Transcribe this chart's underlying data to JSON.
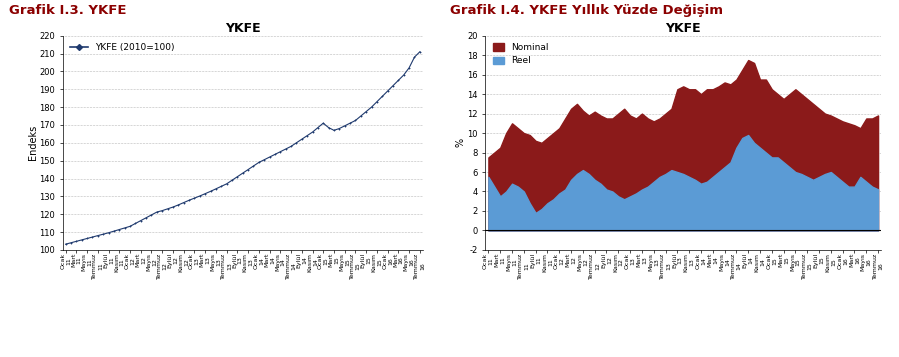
{
  "title1": "YKFE",
  "title2": "YKFE",
  "graph1_title": "Grafik I.3. YKFE",
  "graph2_title": "Grafik I.4. YKFE Yıllık Yüzde Değişim",
  "ylabel1": "Endeks",
  "ylabel2": "%",
  "legend1": "YKFE (2010=100)",
  "legend2_nominal": "Nominal",
  "legend2_reel": "Reel",
  "ylim1": [
    100,
    220
  ],
  "yticks1": [
    100,
    110,
    120,
    130,
    140,
    150,
    160,
    170,
    180,
    190,
    200,
    210,
    220
  ],
  "ylim2": [
    -2,
    20
  ],
  "yticks2": [
    -2,
    0,
    2,
    4,
    6,
    8,
    10,
    12,
    14,
    16,
    18,
    20
  ],
  "line_color": "#1f3a6e",
  "nominal_color": "#8b1a1a",
  "reel_color": "#5b9bd5",
  "title_color": "#8b0000",
  "months": [
    "Ocak",
    "Mart",
    "Mayıs",
    "Temmuz",
    "Eylül",
    "Kasım"
  ],
  "years": [
    "11",
    "12",
    "13",
    "14",
    "15",
    "16"
  ],
  "ykfe_values": [
    103.2,
    104.0,
    104.8,
    105.6,
    106.4,
    107.2,
    108.0,
    108.8,
    109.6,
    110.5,
    111.4,
    112.3,
    113.2,
    114.8,
    116.4,
    118.0,
    119.6,
    121.2,
    122.0,
    123.0,
    124.0,
    125.2,
    126.5,
    127.8,
    129.0,
    130.2,
    131.5,
    132.8,
    134.2,
    135.6,
    137.0,
    139.0,
    141.0,
    143.0,
    145.0,
    147.0,
    149.0,
    150.5,
    152.0,
    153.5,
    155.0,
    156.5,
    158.0,
    160.0,
    162.0,
    164.0,
    166.0,
    168.5,
    171.0,
    168.5,
    167.0,
    168.0,
    169.5,
    171.0,
    172.5,
    175.0,
    177.5,
    180.0,
    183.0,
    186.0,
    189.0,
    192.0,
    195.0,
    198.0,
    202.0,
    208.0,
    211.0
  ],
  "nominal_values": [
    7.5,
    8.0,
    8.5,
    10.0,
    11.0,
    10.5,
    10.0,
    9.8,
    9.2,
    9.0,
    9.5,
    10.0,
    10.5,
    11.5,
    12.5,
    13.0,
    12.3,
    11.8,
    12.2,
    11.8,
    11.5,
    11.5,
    12.0,
    12.5,
    11.8,
    11.5,
    12.0,
    11.5,
    11.2,
    11.5,
    12.0,
    12.5,
    14.5,
    14.8,
    14.5,
    14.5,
    14.0,
    14.5,
    14.5,
    14.8,
    15.2,
    15.0,
    15.5,
    16.5,
    17.5,
    17.2,
    15.5,
    15.5,
    14.5,
    14.0,
    13.5,
    14.0,
    14.5,
    14.0,
    13.5,
    13.0,
    12.5,
    12.0,
    11.8,
    11.5,
    11.2,
    11.0,
    10.8,
    10.5,
    11.5,
    11.5,
    11.81
  ],
  "reel_values": [
    5.5,
    4.5,
    3.5,
    4.0,
    4.8,
    4.5,
    4.0,
    2.8,
    1.8,
    2.2,
    2.8,
    3.2,
    3.8,
    4.2,
    5.2,
    5.8,
    6.2,
    5.8,
    5.2,
    4.8,
    4.2,
    4.0,
    3.5,
    3.2,
    3.5,
    3.8,
    4.2,
    4.5,
    5.0,
    5.5,
    5.8,
    6.2,
    6.0,
    5.8,
    5.5,
    5.2,
    4.8,
    5.0,
    5.5,
    6.0,
    6.5,
    7.0,
    8.5,
    9.5,
    9.8,
    9.0,
    8.5,
    8.0,
    7.5,
    7.5,
    7.0,
    6.5,
    6.0,
    5.8,
    5.5,
    5.2,
    5.5,
    5.8,
    6.0,
    5.5,
    5.0,
    4.5,
    4.5,
    5.5,
    5.0,
    4.5,
    4.22
  ]
}
